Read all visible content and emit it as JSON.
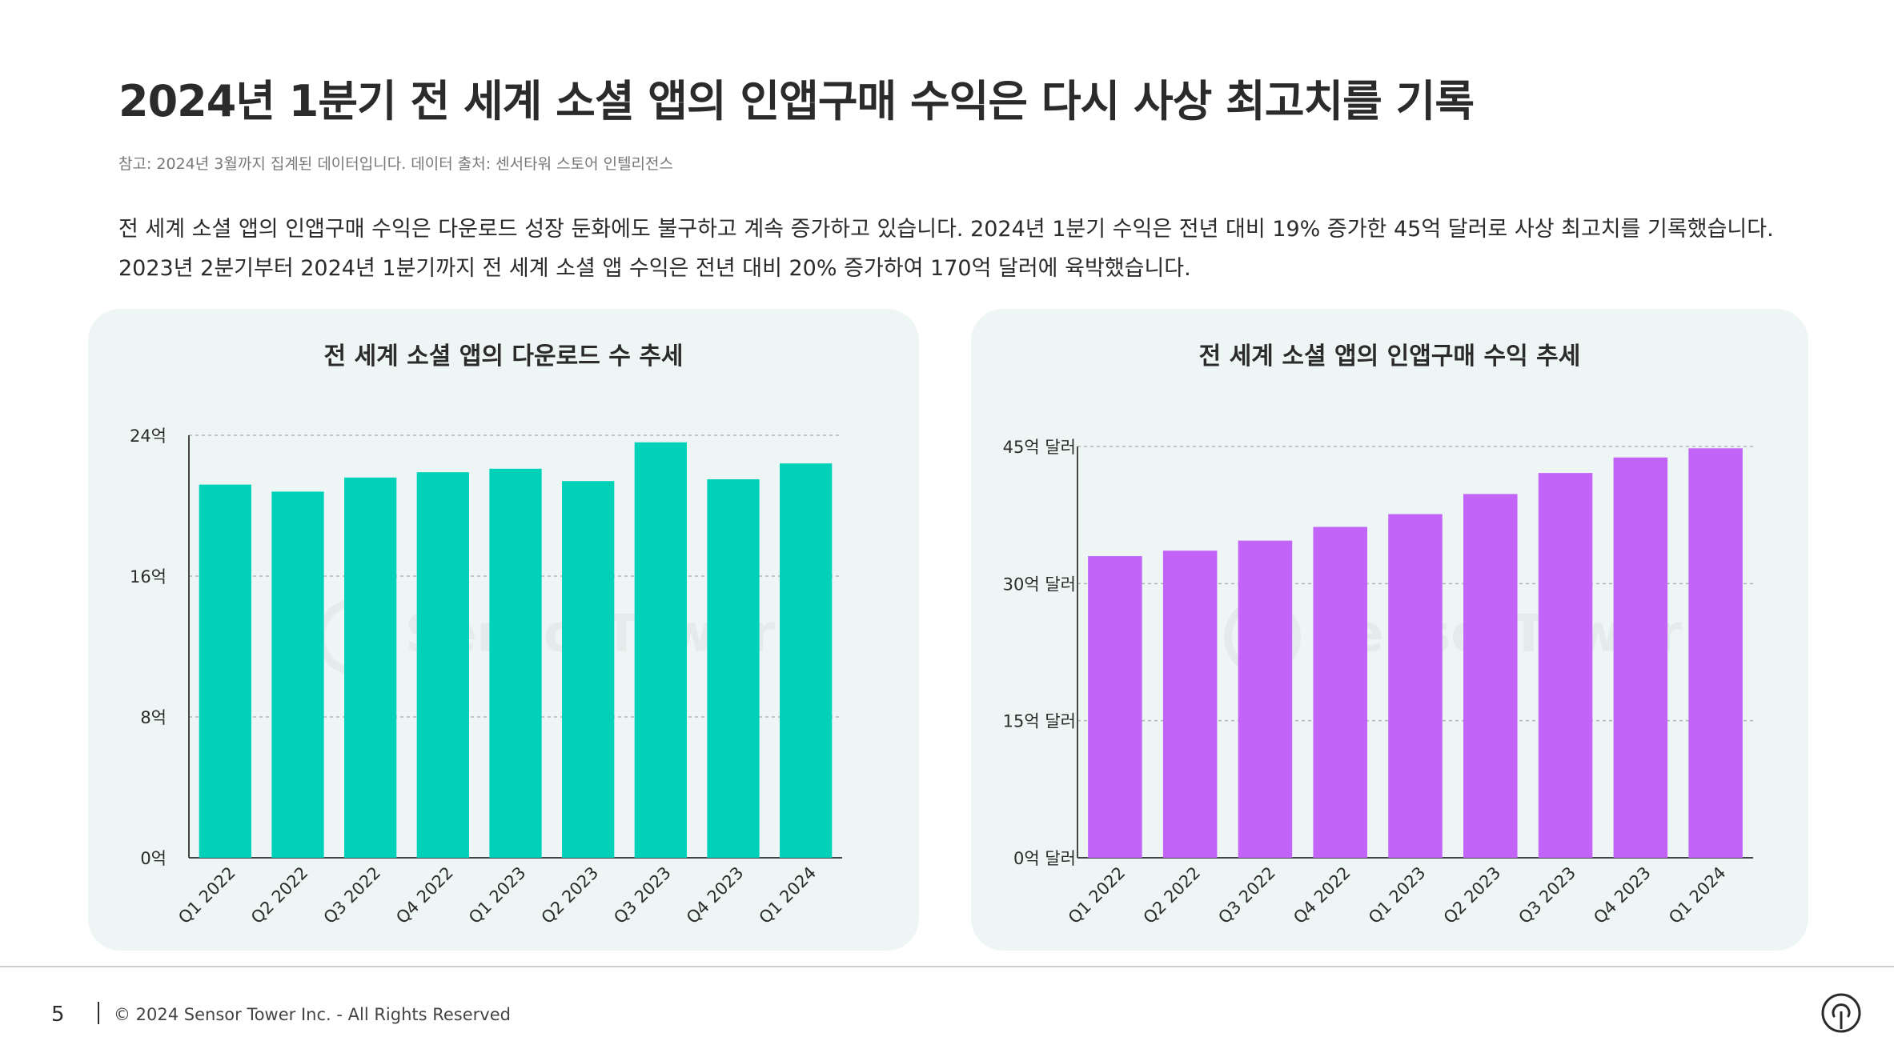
{
  "page": {
    "title": "2024년 1분기 전 세계 소셜 앱의 인앱구매 수익은 다시 사상 최고치를 기록",
    "note": "참고: 2024년 3월까지 집계된 데이터입니다. 데이터 출처: 센서타워 스토어 인텔리전스",
    "description": "전 세계 소셜 앱의 인앱구매 수익은 다운로드 성장 둔화에도 불구하고 계속 증가하고 있습니다. 2024년 1분기 수익은 전년 대비 19% 증가한 45억 달러로 사상 최고치를 기록했습니다. 2023년 2분기부터 2024년 1분기까지 전 세계 소셜 앱 수익은 전년 대비 20% 증가하여 170억 달러에 육박했습니다."
  },
  "watermark": {
    "text": "SensorTower"
  },
  "footer": {
    "page_number": "5",
    "copyright": "© 2024 Sensor Tower Inc. - All Rights Reserved"
  },
  "icons": {
    "footer_logo": "sensor-tower-logo-icon"
  },
  "chart_data": [
    {
      "type": "bar",
      "title": "전 세계 소셜 앱의 다운로드 수 추세",
      "categories": [
        "Q1 2022",
        "Q2 2022",
        "Q3 2022",
        "Q4 2022",
        "Q1 2023",
        "Q2 2023",
        "Q3 2023",
        "Q4 2023",
        "Q1 2024"
      ],
      "values": [
        21.2,
        20.8,
        21.6,
        21.9,
        22.1,
        21.4,
        23.6,
        21.5,
        22.4
      ],
      "ylim": [
        0,
        24
      ],
      "yticks": [
        0,
        8,
        16,
        24
      ],
      "ytick_labels": [
        "0억",
        "8억",
        "16억",
        "24억"
      ],
      "color": "#00d1b8",
      "grid": true
    },
    {
      "type": "bar",
      "title": "전 세계 소셜 앱의 인앱구매 수익 추세",
      "categories": [
        "Q1 2022",
        "Q2 2022",
        "Q3 2022",
        "Q4 2022",
        "Q1 2023",
        "Q2 2023",
        "Q3 2023",
        "Q4 2023",
        "Q1 2024"
      ],
      "values": [
        33.0,
        33.6,
        34.7,
        36.2,
        37.6,
        39.8,
        42.1,
        43.8,
        44.8
      ],
      "ylim": [
        0,
        45
      ],
      "yticks": [
        0,
        15,
        30,
        45
      ],
      "ytick_labels": [
        "0억 달러",
        "15억 달러",
        "30억 달러",
        "45억 달러"
      ],
      "color": "#c264f7",
      "grid": true
    }
  ]
}
